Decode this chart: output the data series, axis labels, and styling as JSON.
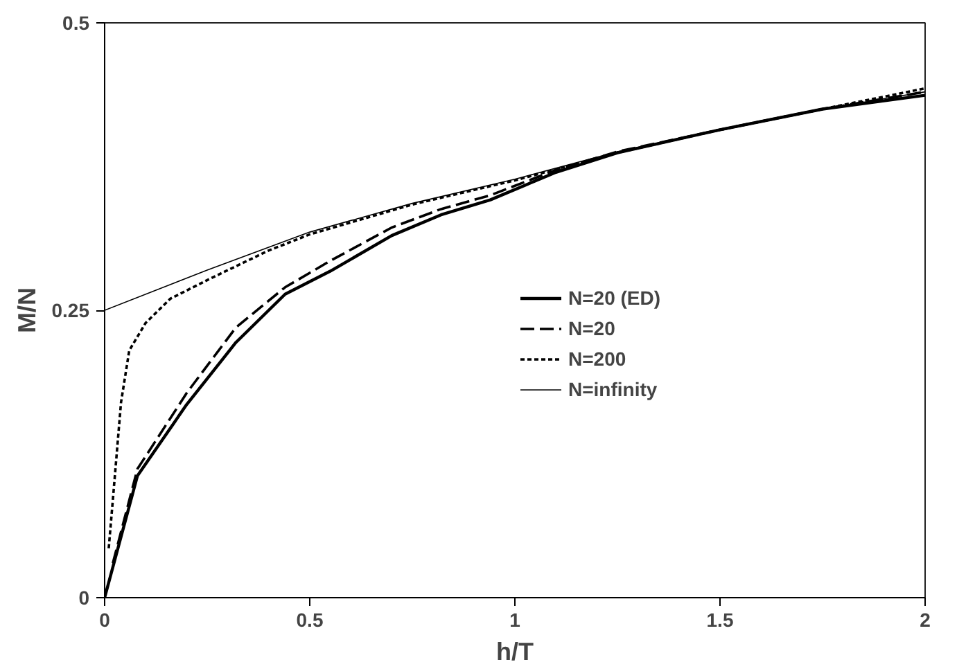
{
  "chart_data": {
    "type": "line",
    "xlabel": "h/T",
    "ylabel": "M/N",
    "xlim": [
      0,
      2
    ],
    "ylim": [
      0,
      0.5
    ],
    "xticks": [
      0,
      0.5,
      1,
      1.5,
      2
    ],
    "yticks": [
      0,
      0.25,
      0.5
    ],
    "grid": false,
    "legend": "right",
    "marker": "none",
    "series": [
      {
        "name": "N=20 (ED)",
        "color": "#000000",
        "line_style": "solid",
        "x": [
          0,
          0.08,
          0.2,
          0.32,
          0.44,
          0.55,
          0.7,
          0.82,
          0.94,
          1.1,
          1.25,
          1.5,
          1.75,
          2
        ],
        "values": [
          0,
          0.106,
          0.168,
          0.222,
          0.264,
          0.284,
          0.315,
          0.333,
          0.346,
          0.37,
          0.387,
          0.407,
          0.425,
          0.437
        ]
      },
      {
        "name": "N=20",
        "color": "#000000",
        "line_style": "dashed",
        "x": [
          0.02,
          0.08,
          0.2,
          0.32,
          0.44,
          0.55,
          0.7,
          0.82,
          0.94,
          1.1,
          1.25,
          1.5,
          1.75,
          2
        ],
        "values": [
          0.03,
          0.112,
          0.178,
          0.235,
          0.27,
          0.293,
          0.322,
          0.338,
          0.35,
          0.372,
          0.388,
          0.407,
          0.425,
          0.44
        ]
      },
      {
        "name": "N=200",
        "color": "#000000",
        "line_style": "dotted",
        "x": [
          0.01,
          0.02,
          0.04,
          0.06,
          0.1,
          0.16,
          0.26,
          0.4,
          0.5,
          0.75,
          1,
          1.25,
          1.5,
          1.75,
          2
        ],
        "values": [
          0.043,
          0.085,
          0.17,
          0.215,
          0.239,
          0.26,
          0.278,
          0.302,
          0.316,
          0.342,
          0.363,
          0.387,
          0.407,
          0.425,
          0.443
        ]
      },
      {
        "name": "N=infinity",
        "color": "#000000",
        "line_style": "solid",
        "x": [
          0,
          0.25,
          0.5,
          0.75,
          1,
          1.25,
          1.5,
          1.75,
          2
        ],
        "values": [
          0.25,
          0.285,
          0.318,
          0.343,
          0.364,
          0.388,
          0.407,
          0.425,
          0.44
        ]
      }
    ]
  }
}
